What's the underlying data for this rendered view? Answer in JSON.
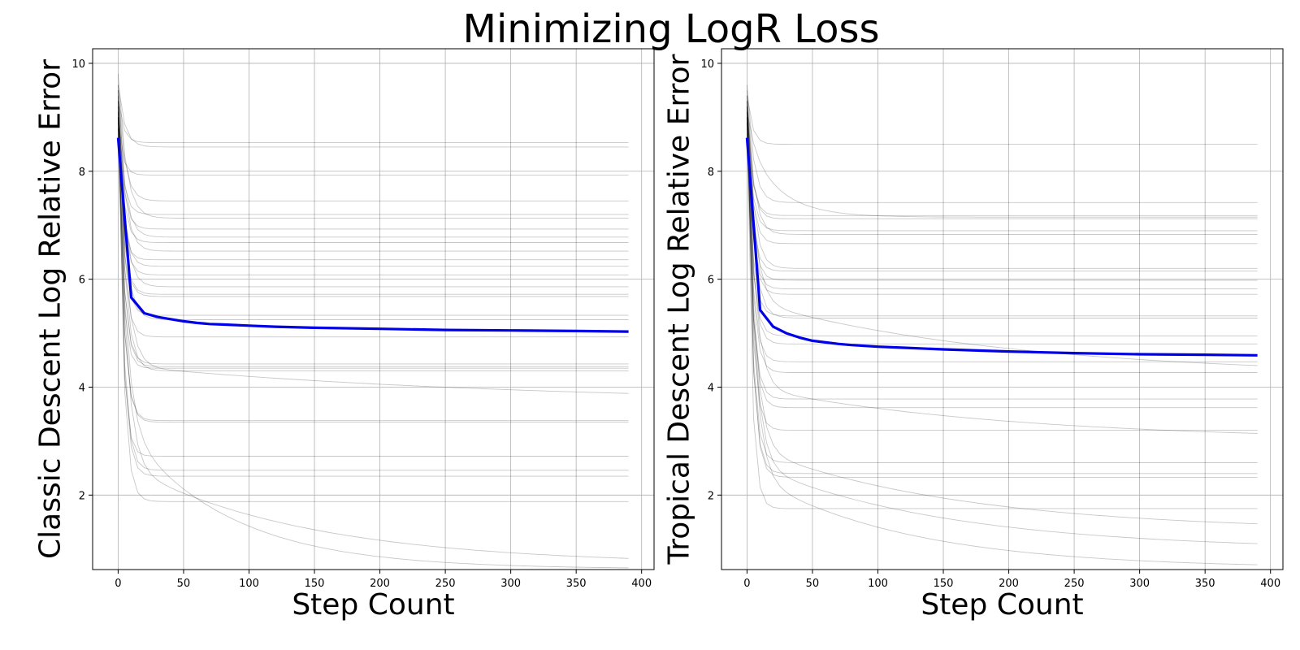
{
  "figure_title": "Minimizing LogR Loss",
  "colors": {
    "mean": "#0000e6",
    "runs": "#000000",
    "grid": "#b0b0b0",
    "axes": "#000000"
  },
  "chart_data": [
    {
      "type": "line",
      "title": "",
      "xlabel": "Step Count",
      "ylabel": "Classic Descent Log Relative Error",
      "xlim": [
        -19.5,
        409.5
      ],
      "ylim": [
        0.62,
        10.27
      ],
      "xticks": [
        0,
        50,
        100,
        150,
        200,
        250,
        300,
        350,
        400
      ],
      "yticks": [
        2,
        4,
        6,
        8,
        10
      ],
      "grid": true,
      "mean_series": {
        "name": "mean",
        "x": [
          0,
          10,
          20,
          30,
          40,
          50,
          60,
          70,
          80,
          100,
          120,
          150,
          200,
          250,
          300,
          350,
          390
        ],
        "y": [
          8.62,
          5.66,
          5.37,
          5.3,
          5.26,
          5.22,
          5.19,
          5.17,
          5.16,
          5.14,
          5.12,
          5.1,
          5.08,
          5.06,
          5.05,
          5.04,
          5.03
        ]
      },
      "run_series": [
        {
          "start": 9.3,
          "final": 8.53,
          "decay": 4
        },
        {
          "start": 9.6,
          "final": 8.45,
          "decay": 5
        },
        {
          "start": 8.9,
          "final": 7.93,
          "decay": 3.5
        },
        {
          "start": 9.5,
          "final": 7.45,
          "decay": 5
        },
        {
          "start": 9.0,
          "final": 7.2,
          "decay": 4
        },
        {
          "start": 9.8,
          "final": 7.13,
          "decay": 6
        },
        {
          "start": 9.2,
          "final": 6.93,
          "decay": 4
        },
        {
          "start": 9.5,
          "final": 6.78,
          "decay": 5
        },
        {
          "start": 9.1,
          "final": 6.68,
          "decay": 4
        },
        {
          "start": 9.6,
          "final": 6.52,
          "decay": 5
        },
        {
          "start": 8.8,
          "final": 6.36,
          "decay": 3.5
        },
        {
          "start": 9.3,
          "final": 6.24,
          "decay": 4
        },
        {
          "start": 9.0,
          "final": 6.08,
          "decay": 4
        },
        {
          "start": 9.4,
          "final": 5.86,
          "decay": 5
        },
        {
          "start": 9.1,
          "final": 5.72,
          "decay": 4
        },
        {
          "start": 8.9,
          "final": 5.68,
          "decay": 4
        },
        {
          "start": 9.2,
          "final": 5.33,
          "decay": 4
        },
        {
          "start": 9.5,
          "final": 5.25,
          "decay": 5
        },
        {
          "start": 9.3,
          "final": 4.93,
          "decay": 4
        },
        {
          "start": 9.1,
          "final": 4.43,
          "decay": 4
        },
        {
          "start": 9.2,
          "final": 4.38,
          "decay": 4
        },
        {
          "start": 8.8,
          "final": 4.35,
          "decay": 3.5
        },
        {
          "start": 9.4,
          "final": 4.3,
          "decay": 5
        },
        {
          "start": 9.0,
          "final": 3.38,
          "decay": 4
        },
        {
          "start": 9.1,
          "final": 3.35,
          "decay": 4
        },
        {
          "start": 8.7,
          "final": 2.72,
          "decay": 3.5
        },
        {
          "start": 9.3,
          "final": 2.46,
          "decay": 4
        },
        {
          "start": 9.0,
          "final": 2.35,
          "decay": 4
        },
        {
          "start": 9.0,
          "final": 1.88,
          "decay": 4
        },
        {
          "start": 9.2,
          "final": 3.69,
          "mid": 4.4,
          "tau": 300
        },
        {
          "start": 9.0,
          "final": 0.71,
          "mid": 2.6,
          "tau": 140
        },
        {
          "start": 8.8,
          "final": 0.63,
          "mid": 3.4,
          "tau": 80
        }
      ]
    },
    {
      "type": "line",
      "title": "",
      "xlabel": "Step Count",
      "ylabel": "Tropical Descent Log Relative Error",
      "xlim": [
        -19.5,
        409.5
      ],
      "ylim": [
        0.62,
        10.27
      ],
      "xticks": [
        0,
        50,
        100,
        150,
        200,
        250,
        300,
        350,
        400
      ],
      "yticks": [
        2,
        4,
        6,
        8,
        10
      ],
      "grid": true,
      "mean_series": {
        "name": "mean",
        "x": [
          0,
          10,
          20,
          30,
          40,
          50,
          60,
          70,
          80,
          100,
          120,
          150,
          200,
          250,
          300,
          350,
          390
        ],
        "y": [
          8.62,
          5.43,
          5.12,
          5.0,
          4.92,
          4.86,
          4.83,
          4.8,
          4.78,
          4.75,
          4.73,
          4.7,
          4.66,
          4.63,
          4.61,
          4.6,
          4.59
        ]
      },
      "run_series": [
        {
          "start": 9.4,
          "final": 8.5,
          "decay": 4
        },
        {
          "start": 9.6,
          "final": 7.42,
          "decay": 5
        },
        {
          "start": 9.1,
          "final": 7.18,
          "decay": 4
        },
        {
          "start": 9.3,
          "final": 7.12,
          "decay": 4
        },
        {
          "start": 9.0,
          "final": 6.9,
          "decay": 4
        },
        {
          "start": 9.5,
          "final": 6.83,
          "decay": 5
        },
        {
          "start": 9.2,
          "final": 6.66,
          "decay": 4
        },
        {
          "start": 9.4,
          "final": 6.2,
          "decay": 5
        },
        {
          "start": 9.0,
          "final": 6.15,
          "decay": 4
        },
        {
          "start": 9.3,
          "final": 5.98,
          "decay": 4
        },
        {
          "start": 9.1,
          "final": 5.82,
          "decay": 4
        },
        {
          "start": 9.2,
          "final": 5.72,
          "decay": 4
        },
        {
          "start": 8.9,
          "final": 5.32,
          "decay": 4
        },
        {
          "start": 9.4,
          "final": 5.28,
          "decay": 5
        },
        {
          "start": 9.0,
          "final": 4.95,
          "decay": 4
        },
        {
          "start": 9.3,
          "final": 4.8,
          "decay": 4
        },
        {
          "start": 9.1,
          "final": 4.47,
          "decay": 4
        },
        {
          "start": 9.2,
          "final": 4.27,
          "decay": 4
        },
        {
          "start": 9.0,
          "final": 3.78,
          "decay": 4
        },
        {
          "start": 9.3,
          "final": 3.62,
          "decay": 4
        },
        {
          "start": 8.9,
          "final": 3.2,
          "decay": 4
        },
        {
          "start": 9.1,
          "final": 2.6,
          "decay": 4
        },
        {
          "start": 9.0,
          "final": 2.4,
          "decay": 4
        },
        {
          "start": 9.2,
          "final": 2.33,
          "decay": 4
        },
        {
          "start": 8.7,
          "final": 1.75,
          "decay": 3.5
        },
        {
          "start": 9.1,
          "final": 7.15,
          "mid": 8.5,
          "tau": 25
        },
        {
          "start": 9.2,
          "final": 3.0,
          "mid": 4.0,
          "tau": 200
        },
        {
          "start": 9.0,
          "final": 1.33,
          "mid": 2.9,
          "tau": 160
        },
        {
          "start": 8.9,
          "final": 0.98,
          "mid": 2.6,
          "tau": 150
        },
        {
          "start": 8.8,
          "final": 0.64,
          "mid": 2.4,
          "tau": 120
        },
        {
          "start": 9.3,
          "final": 4.2,
          "mid": 5.6,
          "tau": 200
        }
      ]
    }
  ]
}
